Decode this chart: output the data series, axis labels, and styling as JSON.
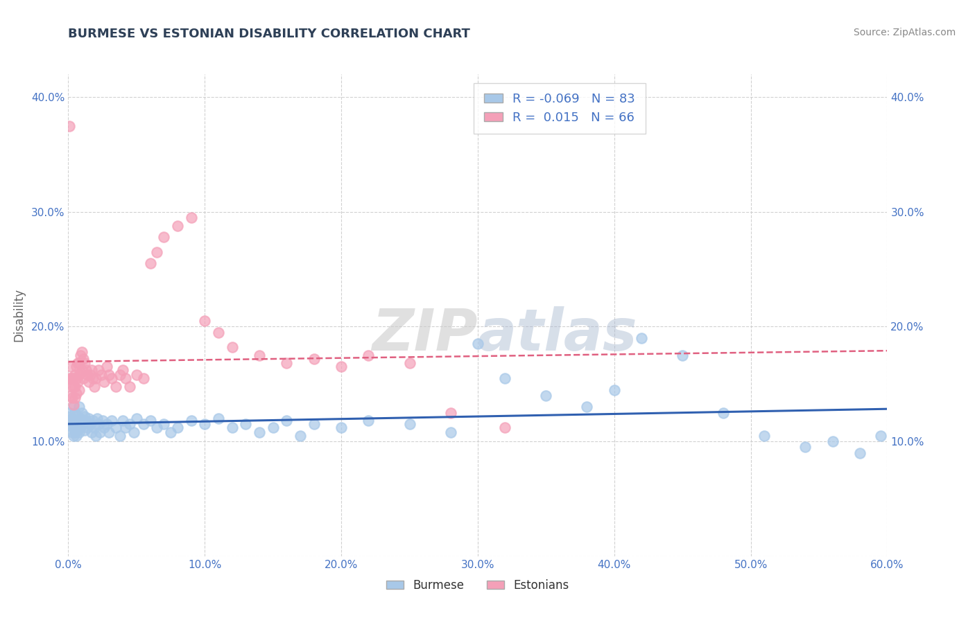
{
  "title": "BURMESE VS ESTONIAN DISABILITY CORRELATION CHART",
  "source": "Source: ZipAtlas.com",
  "ylabel": "Disability",
  "watermark": "ZIPatlas",
  "burmese_R": -0.069,
  "burmese_N": 83,
  "estonian_R": 0.015,
  "estonian_N": 66,
  "burmese_color": "#a8c8e8",
  "estonian_color": "#f4a0b8",
  "burmese_line_color": "#3060b0",
  "estonian_line_color": "#e06080",
  "xlim": [
    0.0,
    0.6
  ],
  "ylim": [
    0.0,
    0.42
  ],
  "xticks": [
    0.0,
    0.1,
    0.2,
    0.3,
    0.4,
    0.5,
    0.6
  ],
  "yticks": [
    0.0,
    0.1,
    0.2,
    0.3,
    0.4
  ],
  "ytick_labels_left": [
    "",
    "10.0%",
    "20.0%",
    "30.0%",
    "40.0%"
  ],
  "xtick_labels": [
    "0.0%",
    "10.0%",
    "20.0%",
    "30.0%",
    "40.0%",
    "50.0%",
    "60.0%"
  ],
  "right_ytick_labels": [
    "10.0%",
    "20.0%",
    "30.0%",
    "40.0%"
  ],
  "right_yticks": [
    0.1,
    0.2,
    0.3,
    0.4
  ],
  "background_color": "#ffffff",
  "grid_color": "#cccccc",
  "title_color": "#2e4057",
  "axis_label_color": "#666666",
  "tick_color": "#4472c4",
  "burmese_x": [
    0.001,
    0.001,
    0.002,
    0.002,
    0.003,
    0.003,
    0.003,
    0.004,
    0.004,
    0.004,
    0.005,
    0.005,
    0.005,
    0.006,
    0.006,
    0.007,
    0.007,
    0.008,
    0.008,
    0.008,
    0.009,
    0.009,
    0.01,
    0.01,
    0.011,
    0.012,
    0.012,
    0.013,
    0.014,
    0.015,
    0.016,
    0.017,
    0.018,
    0.019,
    0.02,
    0.021,
    0.022,
    0.023,
    0.025,
    0.026,
    0.028,
    0.03,
    0.032,
    0.035,
    0.038,
    0.04,
    0.042,
    0.045,
    0.048,
    0.05,
    0.055,
    0.06,
    0.065,
    0.07,
    0.075,
    0.08,
    0.09,
    0.1,
    0.11,
    0.12,
    0.13,
    0.14,
    0.15,
    0.16,
    0.17,
    0.18,
    0.2,
    0.22,
    0.25,
    0.28,
    0.3,
    0.32,
    0.35,
    0.38,
    0.4,
    0.42,
    0.45,
    0.48,
    0.51,
    0.54,
    0.56,
    0.58,
    0.595
  ],
  "burmese_y": [
    0.125,
    0.118,
    0.122,
    0.115,
    0.12,
    0.113,
    0.108,
    0.13,
    0.115,
    0.105,
    0.125,
    0.112,
    0.108,
    0.118,
    0.105,
    0.122,
    0.11,
    0.13,
    0.115,
    0.108,
    0.12,
    0.112,
    0.125,
    0.115,
    0.118,
    0.122,
    0.11,
    0.118,
    0.112,
    0.12,
    0.115,
    0.108,
    0.118,
    0.112,
    0.105,
    0.12,
    0.115,
    0.108,
    0.118,
    0.112,
    0.115,
    0.108,
    0.118,
    0.112,
    0.105,
    0.118,
    0.112,
    0.115,
    0.108,
    0.12,
    0.115,
    0.118,
    0.112,
    0.115,
    0.108,
    0.112,
    0.118,
    0.115,
    0.12,
    0.112,
    0.115,
    0.108,
    0.112,
    0.118,
    0.105,
    0.115,
    0.112,
    0.118,
    0.115,
    0.108,
    0.185,
    0.155,
    0.14,
    0.13,
    0.145,
    0.19,
    0.175,
    0.125,
    0.105,
    0.095,
    0.1,
    0.09,
    0.105
  ],
  "estonian_x": [
    0.001,
    0.001,
    0.002,
    0.002,
    0.002,
    0.003,
    0.003,
    0.003,
    0.004,
    0.004,
    0.004,
    0.005,
    0.005,
    0.005,
    0.006,
    0.006,
    0.006,
    0.007,
    0.007,
    0.008,
    0.008,
    0.008,
    0.009,
    0.009,
    0.01,
    0.01,
    0.011,
    0.011,
    0.012,
    0.013,
    0.014,
    0.015,
    0.016,
    0.017,
    0.018,
    0.019,
    0.02,
    0.022,
    0.024,
    0.026,
    0.028,
    0.03,
    0.032,
    0.035,
    0.038,
    0.04,
    0.042,
    0.045,
    0.05,
    0.055,
    0.06,
    0.065,
    0.07,
    0.08,
    0.09,
    0.1,
    0.11,
    0.12,
    0.14,
    0.16,
    0.18,
    0.2,
    0.22,
    0.25,
    0.28,
    0.32
  ],
  "estonian_y": [
    0.375,
    0.155,
    0.165,
    0.155,
    0.14,
    0.155,
    0.148,
    0.138,
    0.155,
    0.148,
    0.132,
    0.158,
    0.148,
    0.138,
    0.165,
    0.155,
    0.142,
    0.168,
    0.152,
    0.168,
    0.158,
    0.145,
    0.175,
    0.16,
    0.178,
    0.162,
    0.172,
    0.155,
    0.168,
    0.162,
    0.158,
    0.152,
    0.158,
    0.162,
    0.155,
    0.148,
    0.155,
    0.162,
    0.158,
    0.152,
    0.165,
    0.158,
    0.155,
    0.148,
    0.158,
    0.162,
    0.155,
    0.148,
    0.158,
    0.155,
    0.255,
    0.265,
    0.278,
    0.288,
    0.295,
    0.205,
    0.195,
    0.182,
    0.175,
    0.168,
    0.172,
    0.165,
    0.175,
    0.168,
    0.125,
    0.112
  ]
}
